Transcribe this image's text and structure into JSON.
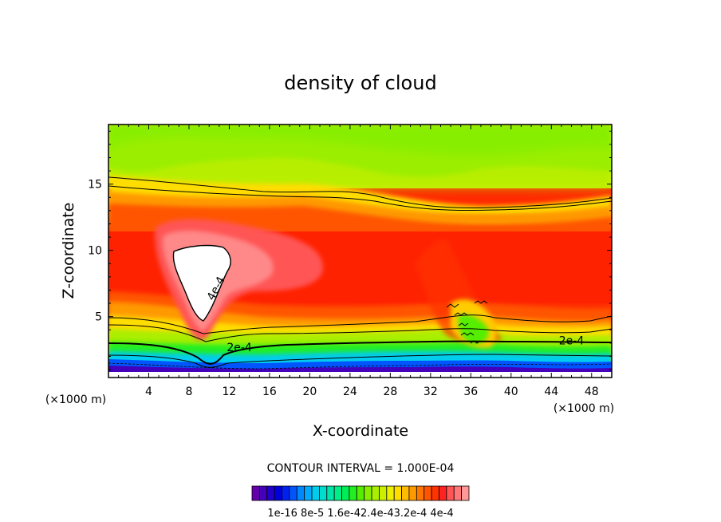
{
  "chart_data": {
    "type": "heatmap",
    "title": "density of cloud",
    "xlabel": "X-coordinate",
    "ylabel": "Z-coordinate",
    "x_unit_label_left": "(×1000 m)",
    "x_unit_label_right": "(×1000 m)",
    "xlim": [
      0,
      50
    ],
    "ylim": [
      0.4,
      19.5
    ],
    "x_ticks": [
      4,
      8,
      12,
      16,
      20,
      24,
      28,
      32,
      36,
      40,
      44,
      48
    ],
    "y_ticks": [
      5,
      10,
      15
    ],
    "x_tick_labels": [
      "4",
      "8",
      "12",
      "16",
      "20",
      "24",
      "28",
      "32",
      "36",
      "40",
      "44",
      "48"
    ],
    "y_tick_labels": [
      "5",
      "10",
      "15"
    ],
    "contour_interval_text": "CONTOUR INTERVAL = 1.000E-04",
    "contour_labels": [
      {
        "text": "4e-4",
        "x": 11.0,
        "z": 7.0
      },
      {
        "text": "2e-4",
        "x": 13.0,
        "z": 2.4
      },
      {
        "text": "2e-4",
        "x": 46.0,
        "z": 2.9
      }
    ],
    "colorbar": {
      "colors": [
        "#6600aa",
        "#4400bb",
        "#2200cc",
        "#0000dd",
        "#0022ee",
        "#0055ff",
        "#0088ff",
        "#00aaff",
        "#00ccee",
        "#00ddcc",
        "#00e6aa",
        "#00ee88",
        "#00ee55",
        "#22ee22",
        "#55ee00",
        "#88ee00",
        "#aaee00",
        "#ccee00",
        "#eeee00",
        "#ffdd00",
        "#ffbb00",
        "#ff9900",
        "#ff7700",
        "#ff5500",
        "#ff3300",
        "#ff2222",
        "#ff5555",
        "#ff7777",
        "#ff9999"
      ],
      "tick_labels_text": "1e-16 8e-5 1.6e-42.4e-43.2e-4 4e-4"
    }
  }
}
